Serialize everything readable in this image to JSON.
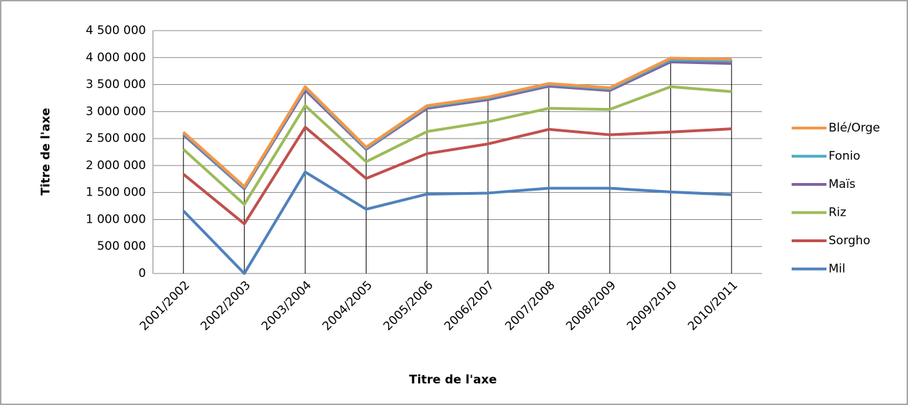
{
  "chart_data": {
    "type": "line",
    "stacked": true,
    "x_label": "Titre de l'axe",
    "y_label": "Titre de l'axe",
    "categories": [
      "2001/2002",
      "2002/2003",
      "2003/2004",
      "2004/2005",
      "2005/2006",
      "2006/2007",
      "2007/2008",
      "2008/2009",
      "2009/2010",
      "2010/2011"
    ],
    "series": [
      {
        "name": "Mil",
        "color": "#4f81bd",
        "values": [
          1160000,
          0,
          1880000,
          1190000,
          1470000,
          1490000,
          1580000,
          1580000,
          1510000,
          1460000
        ]
      },
      {
        "name": "Sorgho",
        "color": "#c0504d",
        "values": [
          680000,
          920000,
          830000,
          570000,
          750000,
          910000,
          1090000,
          990000,
          1110000,
          1220000
        ]
      },
      {
        "name": "Riz",
        "color": "#9bbb59",
        "values": [
          460000,
          360000,
          400000,
          310000,
          410000,
          410000,
          390000,
          470000,
          840000,
          690000
        ]
      },
      {
        "name": "Maïs",
        "color": "#8064a2",
        "values": [
          270000,
          290000,
          290000,
          230000,
          430000,
          410000,
          410000,
          350000,
          460000,
          520000
        ]
      },
      {
        "name": "Fonio",
        "color": "#4bacc6",
        "values": [
          30000,
          20000,
          40000,
          20000,
          30000,
          30000,
          30000,
          30000,
          40000,
          50000
        ]
      },
      {
        "name": "Blé/Orge",
        "color": "#f79646",
        "values": [
          20000,
          20000,
          20000,
          20000,
          20000,
          20000,
          20000,
          20000,
          30000,
          30000
        ]
      }
    ],
    "ylim": [
      0,
      4500000
    ],
    "yticks": [
      0,
      {
        "value": 500000,
        "label": "500 000"
      },
      {
        "value": 1000000,
        "label": "1 000 000"
      },
      {
        "value": 1500000,
        "label": "1 500 000"
      },
      {
        "value": 2000000,
        "label": "2 000 000"
      },
      {
        "value": 2500000,
        "label": "2 500 000"
      },
      {
        "value": 3000000,
        "label": "3 000 000"
      },
      {
        "value": 3500000,
        "label": "3 500 000"
      },
      {
        "value": 4000000,
        "label": "4 000 000"
      },
      {
        "value": 4500000,
        "label": "4 500 000"
      }
    ],
    "grid": true,
    "drop_lines": true,
    "legend": "right"
  }
}
